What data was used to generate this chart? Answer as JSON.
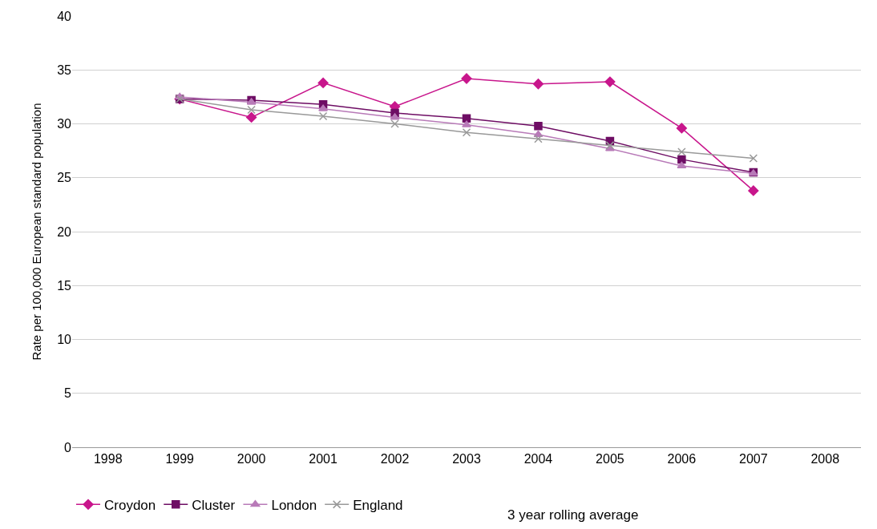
{
  "chart_data": {
    "type": "line",
    "ylabel": "Rate per 100,000 European standard population",
    "x": [
      1999,
      2000,
      2001,
      2002,
      2003,
      2004,
      2005,
      2006,
      2007
    ],
    "xlim": [
      1997.5,
      2008.5
    ],
    "xticks": [
      1998,
      1999,
      2000,
      2001,
      2002,
      2003,
      2004,
      2005,
      2006,
      2007,
      2008
    ],
    "ylim": [
      0,
      40
    ],
    "yticks": [
      0,
      5,
      10,
      15,
      20,
      25,
      30,
      35,
      40
    ],
    "grid": "y",
    "legend": "bottom",
    "series": [
      {
        "name": "Croydon",
        "color": "#c8168c",
        "marker": "diamond",
        "values": [
          32.3,
          30.6,
          33.8,
          31.6,
          34.2,
          33.7,
          33.9,
          29.6,
          23.8
        ]
      },
      {
        "name": "Cluster",
        "color": "#6e0d64",
        "marker": "square",
        "values": [
          32.3,
          32.2,
          31.8,
          31.0,
          30.5,
          29.8,
          28.4,
          26.7,
          25.5
        ]
      },
      {
        "name": "London",
        "color": "#b87ab8",
        "marker": "triangle",
        "values": [
          32.5,
          32.0,
          31.4,
          30.6,
          29.9,
          29.0,
          27.7,
          26.1,
          25.4
        ]
      },
      {
        "name": "England",
        "color": "#999999",
        "marker": "cross",
        "values": [
          32.3,
          31.3,
          30.7,
          30.0,
          29.2,
          28.6,
          28.0,
          27.4,
          26.8
        ]
      }
    ],
    "annotations": [
      "3 year rolling average"
    ]
  }
}
